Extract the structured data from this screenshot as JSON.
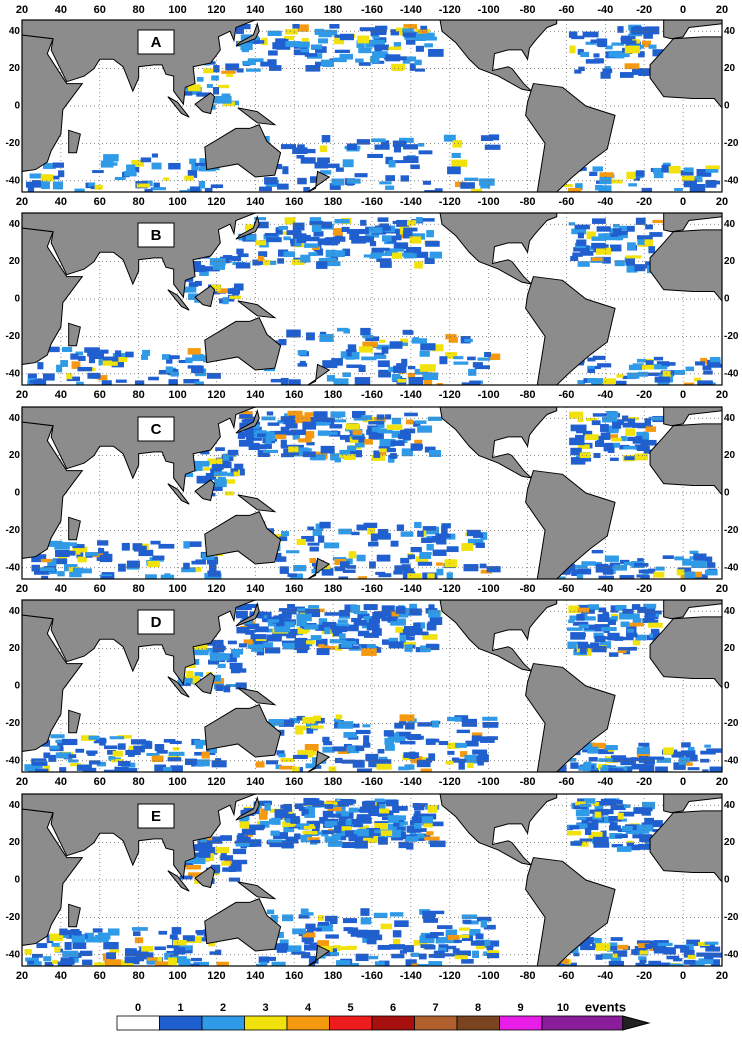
{
  "panels": [
    {
      "label": "A"
    },
    {
      "label": "B"
    },
    {
      "label": "C"
    },
    {
      "label": "D"
    },
    {
      "label": "E"
    }
  ],
  "lon_ticks": [
    20,
    40,
    60,
    80,
    100,
    120,
    140,
    160,
    180,
    -160,
    -140,
    -120,
    -100,
    -80,
    -60,
    -40,
    -20,
    0,
    20
  ],
  "lat_ticks": [
    40,
    20,
    0,
    -20,
    -40
  ],
  "lat_range": [
    -46,
    46
  ],
  "colorbar": {
    "ticks": [
      0,
      1,
      2,
      3,
      4,
      5,
      6,
      7,
      8,
      9,
      10
    ],
    "colors": [
      "#ffffff",
      "#1f5fcf",
      "#2f9be8",
      "#f2e20c",
      "#f59a10",
      "#ee1c1c",
      "#a80f0f",
      "#b0602c",
      "#7a4420",
      "#e81de8",
      "#8a1e9a"
    ],
    "unit": "events"
  }
}
